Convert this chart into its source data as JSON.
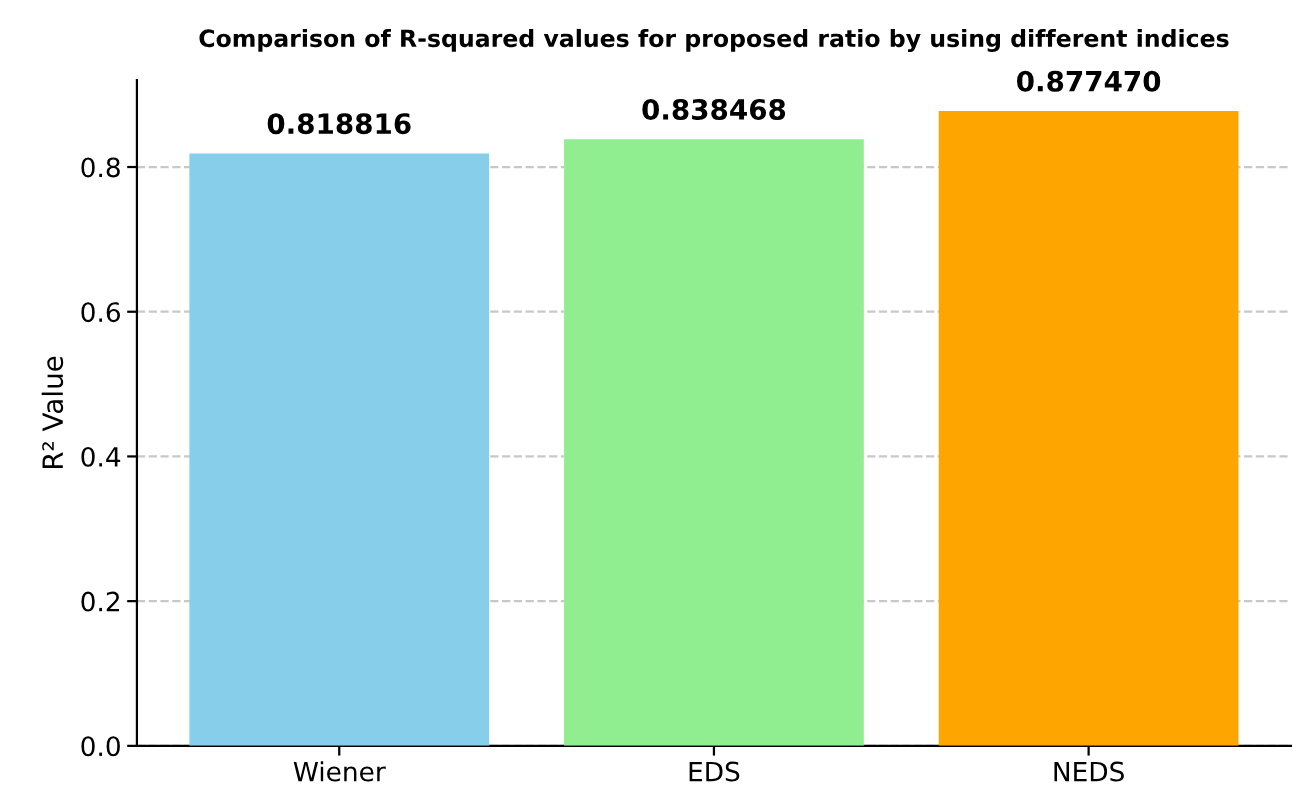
{
  "chart_data": {
    "type": "bar",
    "title": "Comparison of R-squared values for proposed ratio by using different indices",
    "ylabel": "R² Value",
    "categories": [
      "Wiener",
      "EDS",
      "NEDS"
    ],
    "values": [
      0.818816,
      0.838468,
      0.87747
    ],
    "value_labels": [
      "0.818816",
      "0.838468",
      "0.877470"
    ],
    "colors": [
      "#87ceeb",
      "#90ee90",
      "#ffa500"
    ],
    "ylim": [
      0,
      0.92
    ],
    "yticks": [
      {
        "value": 0,
        "label": "0.0"
      },
      {
        "value": 0.2,
        "label": "0.2"
      },
      {
        "value": 0.4,
        "label": "0.4"
      },
      {
        "value": 0.6,
        "label": "0.6"
      },
      {
        "value": 0.8,
        "label": "0.8"
      }
    ],
    "grid": "y",
    "legend": false
  }
}
